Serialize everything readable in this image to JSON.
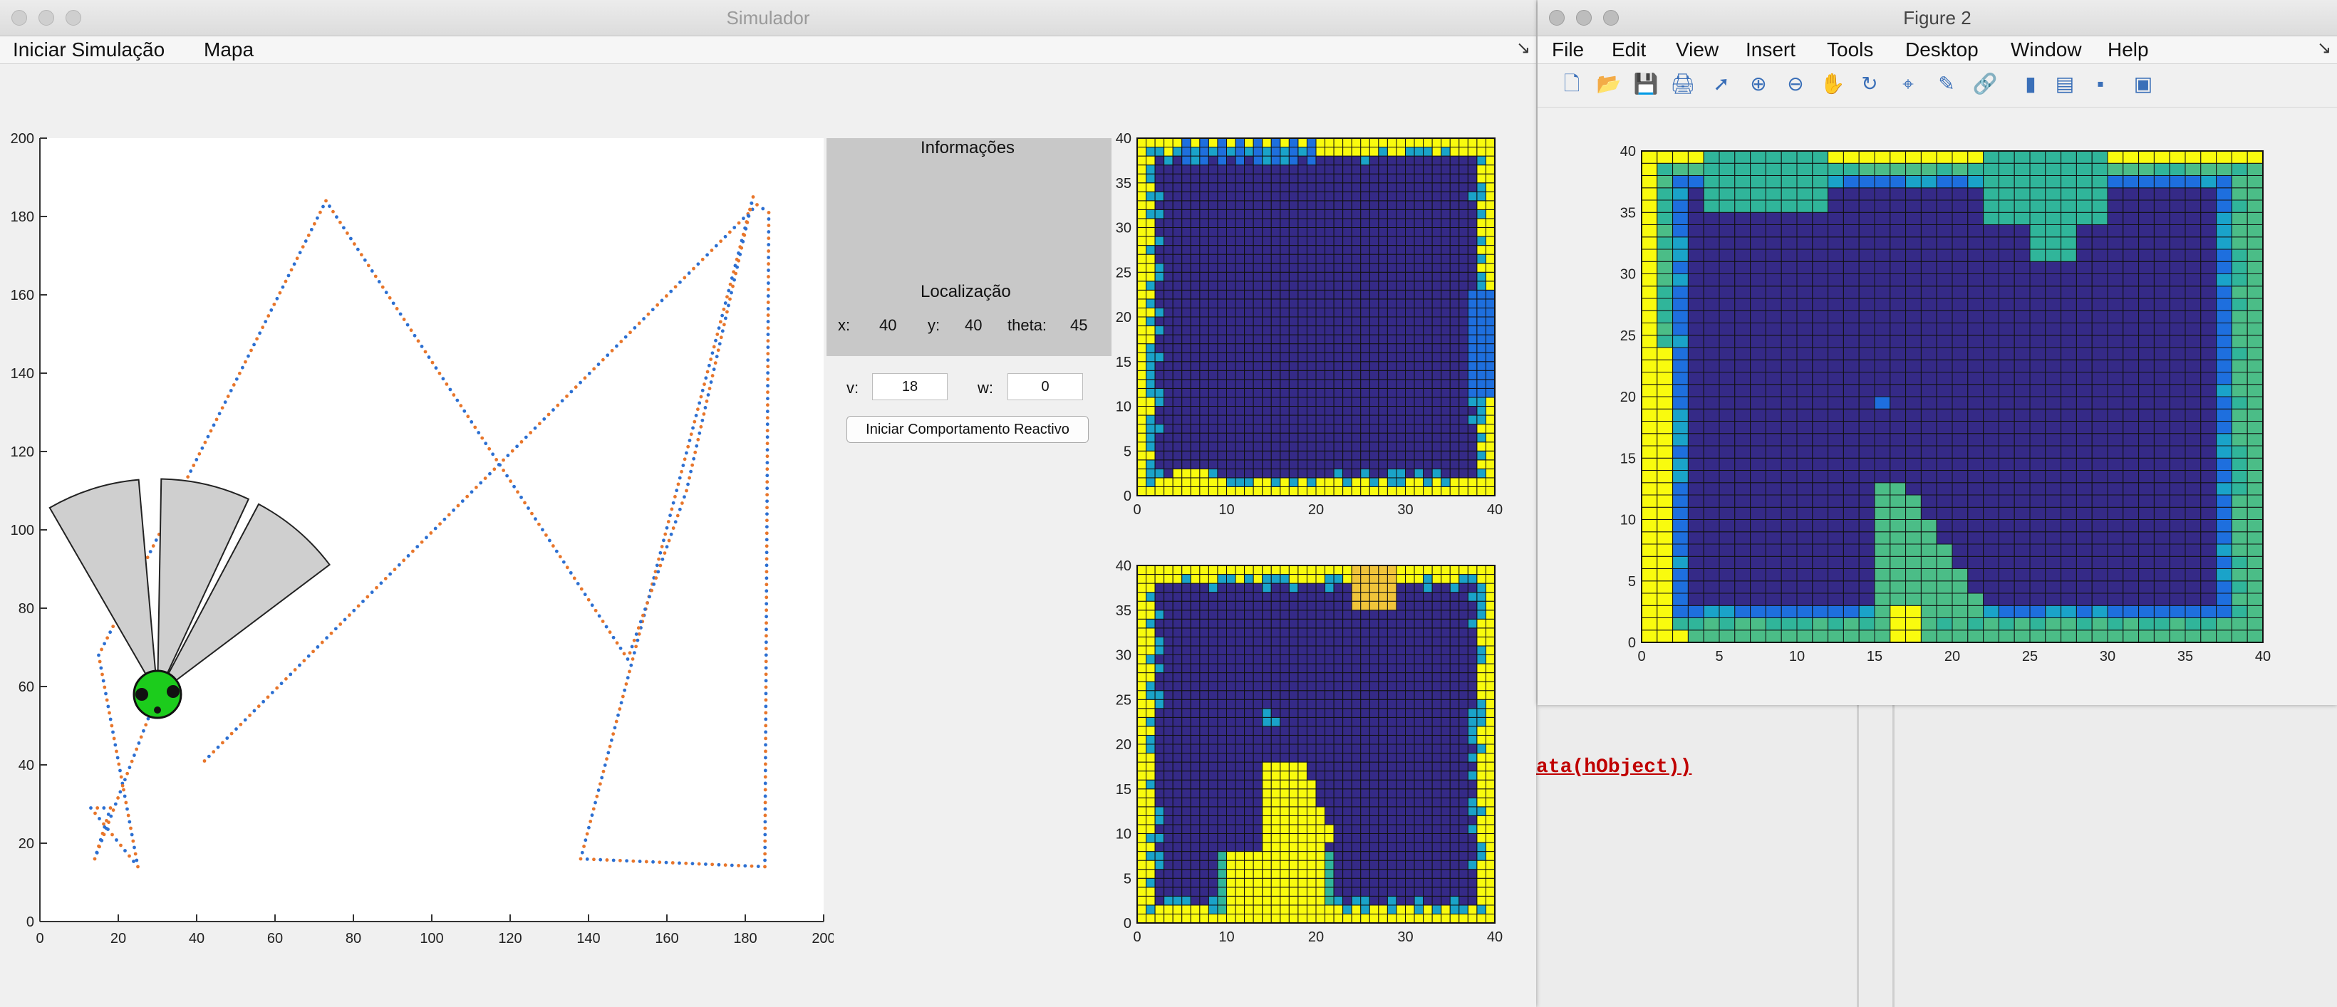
{
  "simulator": {
    "title": "Simulador",
    "menu": [
      "Iniciar Simulação",
      "Mapa"
    ],
    "info_title": "Informações",
    "loc_title": "Localização",
    "x_label": "x:",
    "x_value": "40",
    "y_label": "y:",
    "y_value": "40",
    "theta_label": "theta:",
    "theta_value": "45",
    "v_label": "v:",
    "v_value": "18",
    "w_label": "w:",
    "w_value": "0",
    "reactive_button": "Iniciar Comportamento Reactivo"
  },
  "figure2": {
    "title": "Figure 2",
    "menu": [
      "File",
      "Edit",
      "View",
      "Insert",
      "Tools",
      "Desktop",
      "Window",
      "Help"
    ],
    "toolbar_icons": [
      "new-icon",
      "open-icon",
      "save-icon",
      "print-icon",
      "pointer-icon",
      "zoom-in-icon",
      "zoom-out-icon",
      "pan-icon",
      "rotate-icon",
      "datatip-icon",
      "brush-icon",
      "link-icon",
      "colorbar-icon",
      "legend-icon",
      "hide-icon",
      "dock-icon"
    ]
  },
  "background": {
    "code_fragment": "ata(hObject))"
  },
  "chart_data": [
    {
      "type": "line",
      "name": "simulation-map",
      "xlim": [
        0,
        200
      ],
      "ylim": [
        0,
        200
      ],
      "xticks": [
        0,
        20,
        40,
        60,
        80,
        100,
        120,
        140,
        160,
        180,
        200
      ],
      "yticks": [
        0,
        20,
        40,
        60,
        80,
        100,
        120,
        140,
        160,
        180,
        200
      ],
      "series": [
        {
          "style": "dotted-orange-blue",
          "points": [
            [
              42,
              41
            ],
            [
              183,
              183
            ],
            [
              186,
              181
            ],
            [
              185,
              14
            ],
            [
              138,
              16
            ],
            [
              182,
              185
            ],
            [
              165,
              110
            ],
            [
              150,
              67
            ],
            [
              73,
              184
            ],
            [
              15,
              68
            ],
            [
              25,
              14
            ],
            [
              13,
              29
            ],
            [
              18,
              29
            ],
            [
              14,
              16
            ],
            [
              30,
              58
            ]
          ]
        }
      ],
      "robot": {
        "x": 30,
        "y": 58,
        "color": "#1ccc1c"
      },
      "sensors": [
        {
          "angle_start": 95,
          "angle_end": 120,
          "range": 55
        },
        {
          "angle_start": 65,
          "angle_end": 89,
          "range": 55
        },
        {
          "angle_start": 37,
          "angle_end": 62,
          "range": 55
        }
      ],
      "grid": false
    },
    {
      "type": "heatmap",
      "name": "occupancy-map-1",
      "xlim": [
        0,
        40
      ],
      "ylim": [
        0,
        40
      ],
      "xticks": [
        0,
        10,
        20,
        30,
        40
      ],
      "yticks": [
        0,
        5,
        10,
        15,
        20,
        25,
        30,
        35,
        40
      ]
    },
    {
      "type": "heatmap",
      "name": "occupancy-map-2",
      "xlim": [
        0,
        40
      ],
      "ylim": [
        0,
        40
      ],
      "xticks": [
        0,
        10,
        20,
        30,
        40
      ],
      "yticks": [
        0,
        5,
        10,
        15,
        20,
        25,
        30,
        35,
        40
      ]
    },
    {
      "type": "heatmap",
      "name": "figure2-map",
      "xlim": [
        0,
        40
      ],
      "ylim": [
        0,
        40
      ],
      "xticks": [
        0,
        5,
        10,
        15,
        20,
        25,
        30,
        35,
        40
      ],
      "yticks": [
        0,
        5,
        10,
        15,
        20,
        25,
        30,
        35,
        40
      ]
    }
  ]
}
